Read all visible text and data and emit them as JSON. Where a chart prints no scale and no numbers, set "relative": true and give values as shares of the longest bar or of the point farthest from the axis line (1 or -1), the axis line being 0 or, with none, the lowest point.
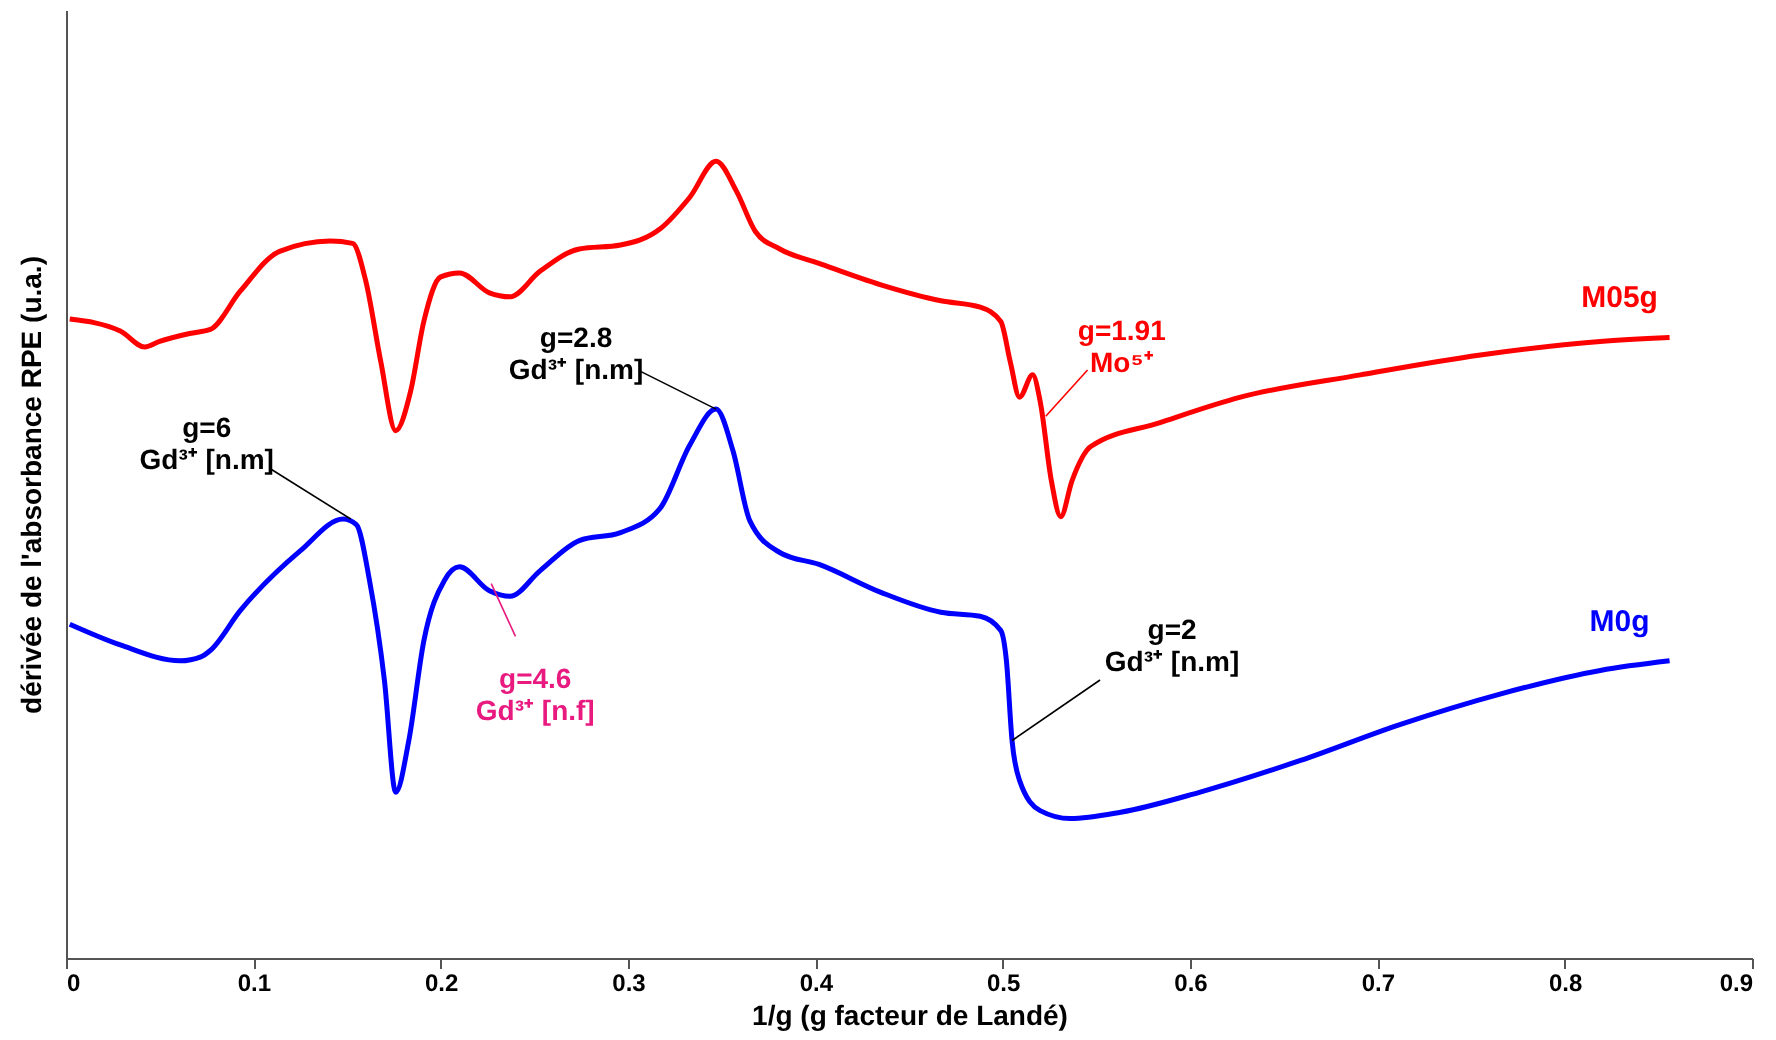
{
  "chart_data": {
    "type": "line",
    "relative": true,
    "xlabel": "1/g (g facteur de Landé)",
    "ylabel": "dérivée de l'absorbance RPE (u.a.)",
    "xlim": [
      0,
      0.9
    ],
    "xticks": [
      0,
      0.1,
      0.2,
      0.3,
      0.4,
      0.5,
      0.6,
      0.7,
      0.8,
      0.9
    ],
    "grid": false,
    "line_style": "solid",
    "series": [
      {
        "name": "M05g",
        "color": "#ff0000",
        "x": [
          0.002,
          0.029,
          0.042,
          0.05,
          0.066,
          0.077,
          0.093,
          0.114,
          0.141,
          0.153,
          0.16,
          0.168,
          0.176,
          0.184,
          0.191,
          0.2,
          0.21,
          0.226,
          0.237,
          0.253,
          0.274,
          0.296,
          0.317,
          0.333,
          0.347,
          0.358,
          0.368,
          0.381,
          0.402,
          0.435,
          0.467,
          0.488,
          0.499,
          0.504,
          0.509,
          0.516,
          0.52,
          0.526,
          0.531,
          0.537,
          0.547,
          0.584,
          0.627,
          0.691,
          0.755,
          0.819,
          0.856
        ],
        "values": [
          0.802,
          0.787,
          0.767,
          0.774,
          0.784,
          0.789,
          0.837,
          0.887,
          0.9,
          0.897,
          0.85,
          0.749,
          0.662,
          0.712,
          0.799,
          0.855,
          0.86,
          0.835,
          0.83,
          0.862,
          0.89,
          0.895,
          0.915,
          0.955,
          1.0,
          0.962,
          0.912,
          0.89,
          0.872,
          0.845,
          0.825,
          0.817,
          0.799,
          0.749,
          0.704,
          0.732,
          0.699,
          0.599,
          0.554,
          0.599,
          0.642,
          0.672,
          0.704,
          0.732,
          0.757,
          0.774,
          0.779
        ]
      },
      {
        "name": "M0g",
        "color": "#0000ff",
        "x": [
          0.002,
          0.029,
          0.061,
          0.072,
          0.077,
          0.093,
          0.125,
          0.148,
          0.155,
          0.162,
          0.17,
          0.176,
          0.183,
          0.191,
          0.202,
          0.21,
          0.226,
          0.237,
          0.253,
          0.274,
          0.296,
          0.317,
          0.333,
          0.347,
          0.356,
          0.365,
          0.381,
          0.402,
          0.435,
          0.467,
          0.488,
          0.499,
          0.502,
          0.505,
          0.509,
          0.52,
          0.536,
          0.563,
          0.605,
          0.659,
          0.712,
          0.765,
          0.819,
          0.856
        ],
        "values": [
          0.419,
          0.393,
          0.373,
          0.378,
          0.386,
          0.436,
          0.511,
          0.551,
          0.544,
          0.474,
          0.348,
          0.208,
          0.273,
          0.398,
          0.474,
          0.491,
          0.461,
          0.454,
          0.486,
          0.524,
          0.534,
          0.564,
          0.644,
          0.689,
          0.637,
          0.549,
          0.509,
          0.494,
          0.459,
          0.434,
          0.429,
          0.411,
          0.373,
          0.273,
          0.223,
          0.185,
          0.175,
          0.183,
          0.208,
          0.248,
          0.293,
          0.331,
          0.361,
          0.373
        ]
      }
    ],
    "annotations": [
      {
        "text": "g=6\nGd³⁺ [n.m]",
        "x": 0.152,
        "y": 0.551
      },
      {
        "text": "g=2.8\nGd³⁺  [n.m]",
        "x": 0.347,
        "y": 0.689
      },
      {
        "text": "g=4.6\nGd³⁺ [n.f]",
        "x": 0.227,
        "y": 0.47
      },
      {
        "text": "g=1.91\nMo⁵⁺",
        "x": 0.523,
        "y": 0.68
      },
      {
        "text": "g=2\nGd³⁺  [n.m]",
        "x": 0.505,
        "y": 0.273
      }
    ]
  }
}
